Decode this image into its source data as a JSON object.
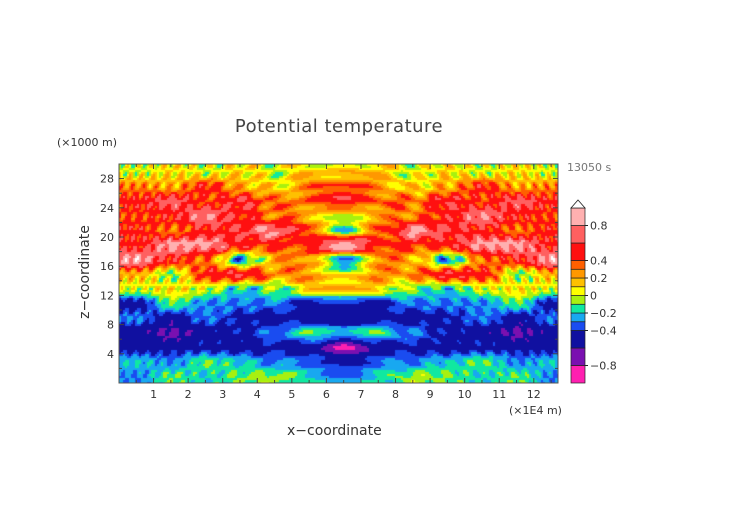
{
  "chart_data": {
    "type": "heatmap",
    "title": "Potential temperature",
    "xlabel": "x−coordinate",
    "ylabel": "z−coordinate",
    "x_unit": "(×1E4 m)",
    "y_unit": "(×1000 m)",
    "time_label": "13050 s",
    "xlim": [
      0,
      12.7
    ],
    "ylim": [
      0,
      30
    ],
    "x_ticks": [
      "1",
      "2",
      "3",
      "4",
      "5",
      "6",
      "7",
      "8",
      "9",
      "10",
      "11",
      "12"
    ],
    "y_ticks": [
      "4",
      "8",
      "12",
      "16",
      "20",
      "24",
      "28"
    ],
    "colorbar": {
      "range": [
        -1,
        1
      ],
      "extend": "max",
      "labels": [
        "0.8",
        "0.4",
        "0.2",
        "0",
        "−0.2",
        "−0.4",
        "−0.8"
      ],
      "label_values": [
        0.8,
        0.4,
        0.2,
        0,
        -0.2,
        -0.4,
        -0.8
      ],
      "bounds": [
        -1,
        -0.8,
        -0.6,
        -0.4,
        -0.3,
        -0.2,
        -0.1,
        0,
        0.1,
        0.2,
        0.3,
        0.4,
        0.6,
        0.8,
        1.0
      ],
      "colors": [
        "#ff1fb0",
        "#7a10b0",
        "#1010a0",
        "#1a4cf0",
        "#18a8f0",
        "#10e8a0",
        "#a8f010",
        "#ffff00",
        "#ffc000",
        "#ff9800",
        "#ff6000",
        "#ff1010",
        "#ff6060",
        "#ffb0b0"
      ],
      "extend_color": "#ffffff"
    },
    "grid_x": [
      0.5,
      1.5,
      2.5,
      3.5,
      4.5,
      5.5,
      6.5,
      7.5,
      8.5,
      9.5,
      10.5,
      11.5,
      12.5
    ],
    "grid_z": [
      29,
      27,
      25,
      23,
      21,
      19,
      17,
      15,
      13,
      11,
      9,
      7,
      5,
      3,
      1
    ],
    "values": [
      [
        0.0,
        0.1,
        0.0,
        0.1,
        0.0,
        0.1,
        0.2,
        0.1,
        0.0,
        0.1,
        0.0,
        0.1,
        0.0
      ],
      [
        0.3,
        0.2,
        0.5,
        0.2,
        0.1,
        0.25,
        0.3,
        0.25,
        0.1,
        0.2,
        0.5,
        0.2,
        0.3
      ],
      [
        0.5,
        0.7,
        0.4,
        0.6,
        0.3,
        0.4,
        0.5,
        0.4,
        0.3,
        0.6,
        0.4,
        0.7,
        0.5
      ],
      [
        0.4,
        0.5,
        0.8,
        0.5,
        0.3,
        0.2,
        0.1,
        0.2,
        0.3,
        0.5,
        0.8,
        0.5,
        0.4
      ],
      [
        0.5,
        0.3,
        0.5,
        0.6,
        0.85,
        0.3,
        -0.2,
        0.3,
        0.85,
        0.6,
        0.5,
        0.3,
        0.5
      ],
      [
        0.5,
        0.85,
        0.85,
        0.5,
        0.4,
        0.5,
        0.9,
        0.5,
        0.4,
        0.5,
        0.85,
        0.85,
        0.5
      ],
      [
        0.9,
        0.5,
        0.3,
        -0.3,
        0.2,
        0.3,
        -0.3,
        0.3,
        0.2,
        -0.3,
        0.3,
        0.5,
        0.9
      ],
      [
        0.2,
        -0.1,
        0.5,
        0.6,
        0.3,
        0.2,
        0.1,
        0.2,
        0.3,
        0.6,
        0.5,
        -0.1,
        0.2
      ],
      [
        0.0,
        0.1,
        0.0,
        -0.2,
        -0.1,
        0.1,
        0.1,
        0.1,
        -0.1,
        -0.2,
        0.0,
        0.1,
        0.0
      ],
      [
        -0.5,
        -0.1,
        -0.3,
        -0.3,
        -0.3,
        -0.45,
        -0.45,
        -0.45,
        -0.3,
        -0.3,
        -0.3,
        -0.1,
        -0.5
      ],
      [
        -0.3,
        -0.5,
        -0.3,
        -0.45,
        -0.5,
        -0.5,
        -0.5,
        -0.5,
        -0.5,
        -0.45,
        -0.3,
        -0.5,
        -0.3
      ],
      [
        -0.5,
        -0.65,
        -0.5,
        -0.45,
        -0.3,
        -0.15,
        -0.2,
        -0.15,
        -0.3,
        -0.45,
        -0.5,
        -0.65,
        -0.5
      ],
      [
        -0.5,
        -0.45,
        -0.45,
        -0.5,
        -0.45,
        -0.5,
        -0.9,
        -0.5,
        -0.45,
        -0.5,
        -0.45,
        -0.45,
        -0.5
      ],
      [
        -0.2,
        -0.3,
        -0.1,
        -0.2,
        -0.3,
        -0.3,
        -0.4,
        -0.3,
        -0.3,
        -0.2,
        -0.1,
        -0.3,
        -0.2
      ],
      [
        -0.3,
        -0.1,
        -0.2,
        -0.1,
        -0.05,
        -0.2,
        -0.3,
        -0.2,
        -0.05,
        -0.1,
        -0.2,
        -0.1,
        -0.3
      ]
    ]
  }
}
